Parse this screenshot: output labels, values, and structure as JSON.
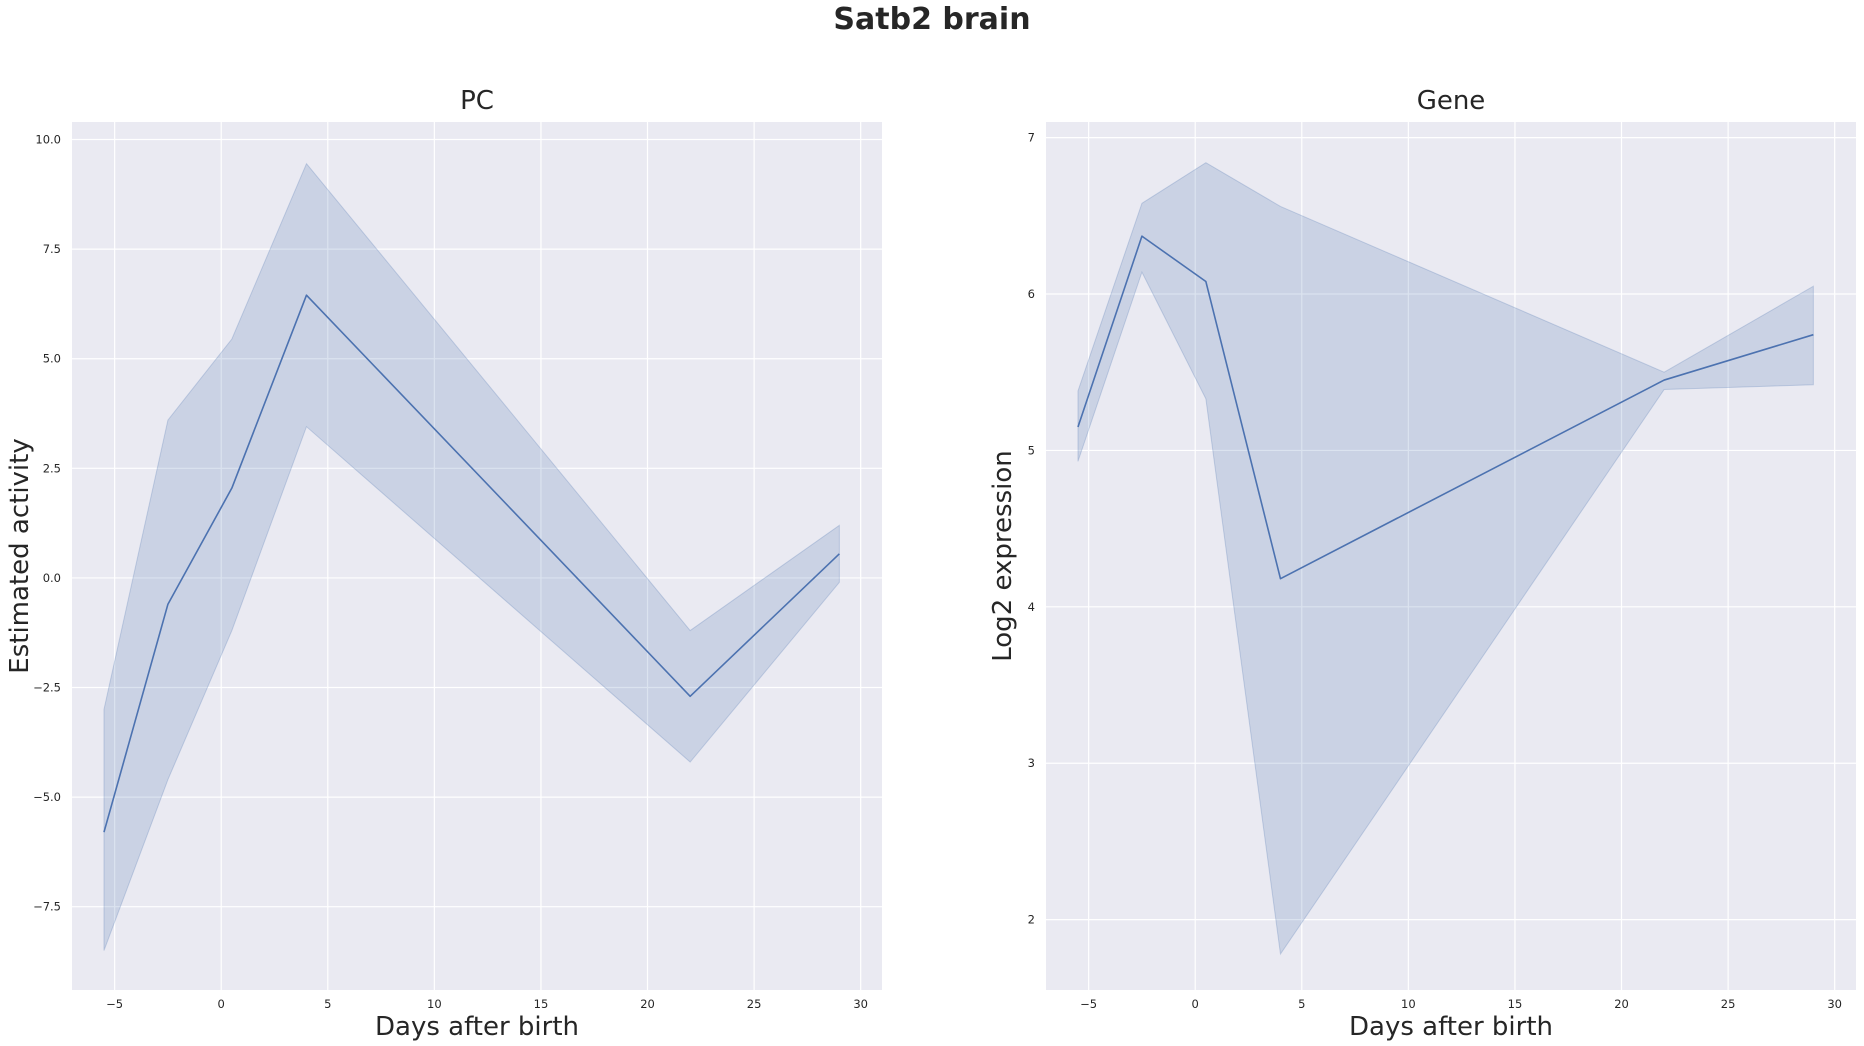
{
  "figure": {
    "title": "Satb2 brain"
  },
  "chart_data": [
    {
      "type": "line",
      "title": "PC",
      "xlabel": "Days after birth",
      "ylabel": "Estimated activity",
      "xlim": [
        -7,
        31
      ],
      "ylim": [
        -9.4,
        10.4
      ],
      "xticks": [
        -5,
        0,
        5,
        10,
        15,
        20,
        25,
        30
      ],
      "xtick_labels": [
        "−5",
        "0",
        "5",
        "10",
        "15",
        "20",
        "25",
        "30"
      ],
      "yticks": [
        -7.5,
        -5.0,
        -2.5,
        0.0,
        2.5,
        5.0,
        7.5,
        10.0
      ],
      "ytick_labels": [
        "−7.5",
        "−5.0",
        "−2.5",
        "0.0",
        "2.5",
        "5.0",
        "7.5",
        "10.0"
      ],
      "grid": true,
      "series": [
        {
          "x": [
            -5.5,
            -2.5,
            0.5,
            4,
            22,
            29
          ],
          "y": [
            -5.8,
            -0.6,
            2.05,
            6.45,
            -2.7,
            0.55
          ],
          "ci_low": [
            -8.5,
            -4.6,
            -1.2,
            3.45,
            -4.2,
            -0.1
          ],
          "ci_high": [
            -3.0,
            3.6,
            5.45,
            9.45,
            -1.2,
            1.2
          ],
          "color": "#4c72b0"
        }
      ]
    },
    {
      "type": "line",
      "title": "Gene",
      "xlabel": "Days after birth",
      "ylabel": "Log2 expression",
      "xlim": [
        -7,
        31
      ],
      "ylim": [
        1.55,
        7.1
      ],
      "xticks": [
        -5,
        0,
        5,
        10,
        15,
        20,
        25,
        30
      ],
      "xtick_labels": [
        "−5",
        "0",
        "5",
        "10",
        "15",
        "20",
        "25",
        "30"
      ],
      "yticks": [
        2,
        3,
        4,
        5,
        6,
        7
      ],
      "ytick_labels": [
        "2",
        "3",
        "4",
        "5",
        "6",
        "7"
      ],
      "grid": true,
      "series": [
        {
          "x": [
            -5.5,
            -2.5,
            0.5,
            4,
            22,
            29
          ],
          "y": [
            5.15,
            6.37,
            6.08,
            4.18,
            5.45,
            5.74
          ],
          "ci_low": [
            4.93,
            6.14,
            5.33,
            1.78,
            5.39,
            5.42
          ],
          "ci_high": [
            5.38,
            6.58,
            6.84,
            6.56,
            5.5,
            6.05
          ],
          "color": "#4c72b0"
        }
      ]
    }
  ],
  "colors": {
    "axes_bg": "#eaeaf2",
    "grid": "#ffffff",
    "line": "#4c72b0",
    "band": "#4c72b0"
  }
}
